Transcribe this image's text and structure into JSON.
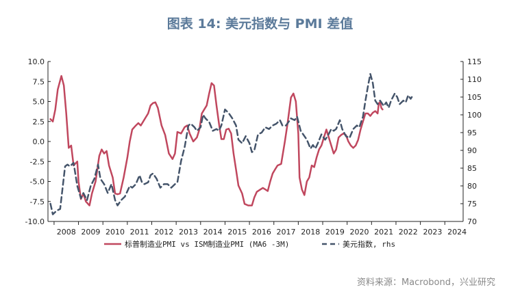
{
  "chart_data": {
    "type": "line",
    "title": "图表 14: 美元指数与 PMI 差值",
    "source": "资料来源：Macrobond，兴业研究",
    "x_ticks": [
      "2008",
      "2009",
      "2010",
      "2011",
      "2012",
      "2013",
      "2014",
      "2015",
      "2016",
      "2017",
      "2018",
      "2019",
      "2020",
      "2021",
      "2022",
      "2023",
      "2024"
    ],
    "xlim": [
      2007.75,
      2024.75
    ],
    "y_left": {
      "lim": [
        -10,
        10
      ],
      "ticks": [
        "10.0",
        "7.5",
        "5.0",
        "2.5",
        "0.0",
        "-2.5",
        "-5.0",
        "-7.5",
        "-10.0"
      ]
    },
    "y_right": {
      "lim": [
        70,
        115
      ],
      "ticks": [
        "115",
        "110",
        "105",
        "100",
        "95",
        "90",
        "85",
        "80",
        "75",
        "70"
      ]
    },
    "series": [
      {
        "name": "标普制造业PMI vs ISM制造业PMI (MA6 -3M)",
        "axis": "left",
        "color": "#c0475e",
        "style": "solid",
        "points": [
          [
            2007.85,
            2.8
          ],
          [
            2007.95,
            2.5
          ],
          [
            2008.05,
            4.0
          ],
          [
            2008.15,
            6.5
          ],
          [
            2008.3,
            8.2
          ],
          [
            2008.4,
            7.0
          ],
          [
            2008.5,
            3.5
          ],
          [
            2008.6,
            -0.8
          ],
          [
            2008.7,
            -0.5
          ],
          [
            2008.8,
            -3.0
          ],
          [
            2008.95,
            -2.5
          ],
          [
            2009.0,
            -5.0
          ],
          [
            2009.1,
            -7.2
          ],
          [
            2009.2,
            -6.5
          ],
          [
            2009.3,
            -7.5
          ],
          [
            2009.45,
            -8.0
          ],
          [
            2009.55,
            -6.5
          ],
          [
            2009.7,
            -5.0
          ],
          [
            2009.85,
            -1.8
          ],
          [
            2009.95,
            -1.0
          ],
          [
            2010.05,
            -1.5
          ],
          [
            2010.15,
            -1.2
          ],
          [
            2010.25,
            -3.0
          ],
          [
            2010.4,
            -4.5
          ],
          [
            2010.5,
            -6.5
          ],
          [
            2010.6,
            -6.6
          ],
          [
            2010.7,
            -6.5
          ],
          [
            2010.85,
            -4.5
          ],
          [
            2011.0,
            -2.0
          ],
          [
            2011.1,
            0.0
          ],
          [
            2011.2,
            1.5
          ],
          [
            2011.35,
            2.0
          ],
          [
            2011.45,
            2.3
          ],
          [
            2011.55,
            2.0
          ],
          [
            2011.75,
            3.0
          ],
          [
            2011.85,
            3.5
          ],
          [
            2011.95,
            4.5
          ],
          [
            2012.05,
            4.8
          ],
          [
            2012.15,
            4.9
          ],
          [
            2012.25,
            4.2
          ],
          [
            2012.4,
            2.0
          ],
          [
            2012.55,
            0.8
          ],
          [
            2012.7,
            -1.5
          ],
          [
            2012.85,
            -2.2
          ],
          [
            2012.95,
            -1.5
          ],
          [
            2013.05,
            1.2
          ],
          [
            2013.2,
            1.0
          ],
          [
            2013.35,
            1.8
          ],
          [
            2013.45,
            2.0
          ],
          [
            2013.55,
            1.0
          ],
          [
            2013.7,
            0.0
          ],
          [
            2013.85,
            0.5
          ],
          [
            2013.95,
            1.5
          ],
          [
            2014.05,
            3.5
          ],
          [
            2014.15,
            4.0
          ],
          [
            2014.25,
            4.5
          ],
          [
            2014.35,
            6.0
          ],
          [
            2014.45,
            7.3
          ],
          [
            2014.55,
            7.0
          ],
          [
            2014.65,
            4.5
          ],
          [
            2014.75,
            2.3
          ],
          [
            2014.85,
            0.3
          ],
          [
            2014.95,
            0.3
          ],
          [
            2015.05,
            1.5
          ],
          [
            2015.15,
            1.6
          ],
          [
            2015.25,
            1.0
          ],
          [
            2015.35,
            -1.5
          ],
          [
            2015.45,
            -3.5
          ],
          [
            2015.55,
            -5.5
          ],
          [
            2015.7,
            -6.5
          ],
          [
            2015.8,
            -7.8
          ],
          [
            2015.95,
            -8.0
          ],
          [
            2016.1,
            -8.0
          ],
          [
            2016.2,
            -7.0
          ],
          [
            2016.3,
            -6.3
          ],
          [
            2016.45,
            -6.0
          ],
          [
            2016.55,
            -5.8
          ],
          [
            2016.65,
            -6.0
          ],
          [
            2016.75,
            -6.2
          ],
          [
            2016.85,
            -5.0
          ],
          [
            2016.95,
            -4.0
          ],
          [
            2017.05,
            -3.5
          ],
          [
            2017.15,
            -3.0
          ],
          [
            2017.3,
            -2.8
          ],
          [
            2017.45,
            0.0
          ],
          [
            2017.55,
            2.0
          ],
          [
            2017.7,
            5.5
          ],
          [
            2017.8,
            6.0
          ],
          [
            2017.9,
            5.0
          ],
          [
            2018.0,
            1.0
          ],
          [
            2018.05,
            -4.5
          ],
          [
            2018.15,
            -6.0
          ],
          [
            2018.25,
            -6.7
          ],
          [
            2018.35,
            -5.0
          ],
          [
            2018.45,
            -4.5
          ],
          [
            2018.55,
            -3.0
          ],
          [
            2018.65,
            -3.2
          ],
          [
            2018.75,
            -2.0
          ],
          [
            2018.85,
            -1.0
          ],
          [
            2018.95,
            -0.5
          ],
          [
            2019.05,
            0.5
          ],
          [
            2019.15,
            1.5
          ],
          [
            2019.25,
            0.5
          ],
          [
            2019.35,
            -0.5
          ],
          [
            2019.45,
            -1.5
          ],
          [
            2019.55,
            -1.0
          ],
          [
            2019.65,
            0.5
          ],
          [
            2019.75,
            0.8
          ],
          [
            2019.85,
            1.0
          ],
          [
            2019.95,
            0.8
          ],
          [
            2020.05,
            0.0
          ],
          [
            2020.15,
            -0.5
          ],
          [
            2020.25,
            -0.8
          ],
          [
            2020.35,
            -0.5
          ],
          [
            2020.45,
            0.2
          ],
          [
            2020.55,
            1.5
          ],
          [
            2020.65,
            2.5
          ],
          [
            2020.75,
            3.5
          ],
          [
            2020.85,
            3.5
          ],
          [
            2020.95,
            3.2
          ],
          [
            2021.05,
            3.6
          ],
          [
            2021.15,
            3.8
          ],
          [
            2021.25,
            3.5
          ],
          [
            2021.3,
            4.8
          ],
          [
            2021.35,
            4.9
          ],
          [
            2021.4,
            4.2
          ],
          [
            2021.45,
            4.0
          ]
        ]
      },
      {
        "name": "美元指数, rhs",
        "axis": "right",
        "color": "#44546a",
        "style": "dashed",
        "points": [
          [
            2007.85,
            75.0
          ],
          [
            2007.95,
            72.0
          ],
          [
            2008.1,
            73.0
          ],
          [
            2008.25,
            73.5
          ],
          [
            2008.45,
            85.5
          ],
          [
            2008.55,
            86.0
          ],
          [
            2008.65,
            85.5
          ],
          [
            2008.8,
            86.5
          ],
          [
            2008.95,
            80.0
          ],
          [
            2009.1,
            76.5
          ],
          [
            2009.2,
            78.0
          ],
          [
            2009.35,
            76.0
          ],
          [
            2009.5,
            80.0
          ],
          [
            2009.65,
            82.0
          ],
          [
            2009.8,
            86.0
          ],
          [
            2009.9,
            82.0
          ],
          [
            2010.05,
            80.5
          ],
          [
            2010.2,
            78.0
          ],
          [
            2010.35,
            80.5
          ],
          [
            2010.5,
            76.0
          ],
          [
            2010.6,
            74.5
          ],
          [
            2010.75,
            76.0
          ],
          [
            2010.9,
            77.0
          ],
          [
            2011.0,
            78.5
          ],
          [
            2011.1,
            80.0
          ],
          [
            2011.2,
            79.5
          ],
          [
            2011.35,
            80.5
          ],
          [
            2011.5,
            83.0
          ],
          [
            2011.6,
            81.0
          ],
          [
            2011.7,
            80.5
          ],
          [
            2011.85,
            81.0
          ],
          [
            2011.95,
            83.0
          ],
          [
            2012.05,
            83.5
          ],
          [
            2012.2,
            82.0
          ],
          [
            2012.35,
            79.5
          ],
          [
            2012.5,
            80.5
          ],
          [
            2012.65,
            80.5
          ],
          [
            2012.8,
            79.5
          ],
          [
            2012.95,
            80.5
          ],
          [
            2013.05,
            81.0
          ],
          [
            2013.2,
            87.0
          ],
          [
            2013.35,
            91.0
          ],
          [
            2013.5,
            97.0
          ],
          [
            2013.6,
            97.5
          ],
          [
            2013.75,
            96.5
          ],
          [
            2013.85,
            95.5
          ],
          [
            2014.0,
            96.5
          ],
          [
            2014.1,
            100.0
          ],
          [
            2014.2,
            99.0
          ],
          [
            2014.35,
            98.0
          ],
          [
            2014.5,
            95.5
          ],
          [
            2014.65,
            96.0
          ],
          [
            2014.75,
            95.5
          ],
          [
            2014.85,
            97.0
          ],
          [
            2015.0,
            101.5
          ],
          [
            2015.15,
            100.5
          ],
          [
            2015.3,
            99.0
          ],
          [
            2015.45,
            97.0
          ],
          [
            2015.55,
            93.0
          ],
          [
            2015.7,
            92.0
          ],
          [
            2015.85,
            94.0
          ],
          [
            2016.0,
            92.0
          ],
          [
            2016.1,
            89.5
          ],
          [
            2016.2,
            90.0
          ],
          [
            2016.35,
            94.5
          ],
          [
            2016.5,
            95.0
          ],
          [
            2016.65,
            96.5
          ],
          [
            2016.8,
            96.0
          ],
          [
            2016.95,
            97.0
          ],
          [
            2017.1,
            97.5
          ],
          [
            2017.25,
            98.5
          ],
          [
            2017.35,
            97.0
          ],
          [
            2017.5,
            97.0
          ],
          [
            2017.7,
            99.0
          ],
          [
            2017.85,
            98.5
          ],
          [
            2017.95,
            99.5
          ],
          [
            2018.1,
            95.5
          ],
          [
            2018.2,
            94.5
          ],
          [
            2018.35,
            93.0
          ],
          [
            2018.5,
            90.5
          ],
          [
            2018.6,
            91.5
          ],
          [
            2018.7,
            90.5
          ],
          [
            2018.8,
            92.0
          ],
          [
            2018.95,
            94.5
          ],
          [
            2019.1,
            93.0
          ],
          [
            2019.2,
            94.0
          ],
          [
            2019.35,
            96.0
          ],
          [
            2019.45,
            95.5
          ],
          [
            2019.55,
            96.0
          ],
          [
            2019.7,
            98.5
          ],
          [
            2019.8,
            96.0
          ],
          [
            2019.95,
            94.0
          ],
          [
            2020.1,
            93.5
          ],
          [
            2020.25,
            96.0
          ],
          [
            2020.4,
            97.0
          ],
          [
            2020.5,
            96.5
          ],
          [
            2020.65,
            99.5
          ],
          [
            2020.75,
            104.0
          ],
          [
            2020.85,
            108.0
          ],
          [
            2020.95,
            111.5
          ],
          [
            2021.05,
            109.0
          ],
          [
            2021.15,
            104.0
          ],
          [
            2021.25,
            103.0
          ],
          [
            2021.35,
            104.0
          ],
          [
            2021.5,
            102.5
          ],
          [
            2021.6,
            103.5
          ],
          [
            2021.7,
            102.0
          ],
          [
            2021.8,
            104.0
          ],
          [
            2021.95,
            106.0
          ],
          [
            2022.05,
            105.0
          ],
          [
            2022.15,
            103.0
          ],
          [
            2022.3,
            104.0
          ],
          [
            2022.4,
            103.5
          ],
          [
            2022.5,
            105.5
          ],
          [
            2022.6,
            104.5
          ],
          [
            2022.65,
            105.0
          ]
        ]
      }
    ],
    "legend": {
      "position": "bottom"
    },
    "grid": false
  }
}
